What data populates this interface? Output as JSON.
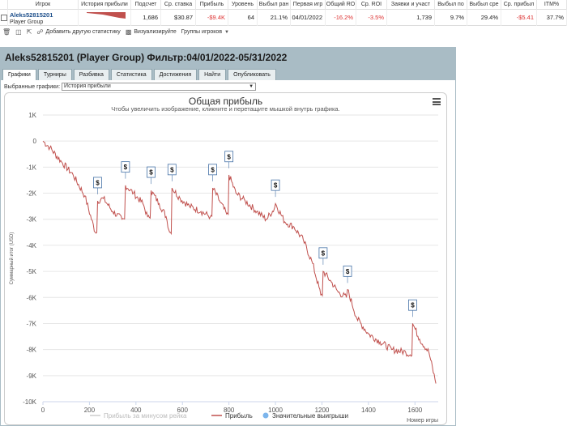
{
  "stats": {
    "headers": [
      "Игрок",
      "История прибыли",
      "Подсчет",
      "Ср. ставка",
      "Прибыль",
      "Уровень",
      "Выбыл ран",
      "Первая игр",
      "Общий RO",
      "Ср. ROI",
      "Заявки и участ",
      "Выбыл по",
      "Выбыл сре",
      "Ср. прибыл",
      "ITM%"
    ],
    "row": {
      "player_name": "Aleks52815201",
      "player_group": "Player Group",
      "count": "1,686",
      "avg_stake": "$30.87",
      "profit": "-$9.4K",
      "level": "64",
      "early_out": "21.1%",
      "first_game": "04/01/2022",
      "total_roi": "-16.2%",
      "avg_roi": "-3.5%",
      "entries": "1,739",
      "out_late": "9.7%",
      "out_mid": "29.4%",
      "avg_profit": "-$5.41",
      "itm": "37.7%"
    }
  },
  "toolbar": {
    "add_stat": "Добавить другую статистику",
    "visualize": "Визуализируйте",
    "groups": "Группы игроков"
  },
  "panel": {
    "title": "Aleks52815201 (Player Group) Фильтр:04/01/2022-05/31/2022",
    "tabs": [
      "Графики",
      "Турниры",
      "Разбивка",
      "Статистика",
      "Достижения",
      "Найти",
      "Опубликовать"
    ],
    "select_label": "Выбранные графики:",
    "select_value": "История прибыли"
  },
  "chart_data": {
    "type": "line",
    "title": "Общая прибыль",
    "subtitle": "Чтобы увеличить изображение, кликните и перетащите мышкой внутрь графика.",
    "xlabel": "Номер игры",
    "ylabel": "Суммарный итог (USD)",
    "xlim": [
      0,
      1700
    ],
    "ylim": [
      -10000,
      1000
    ],
    "x_ticks": [
      0,
      200,
      400,
      600,
      800,
      1000,
      1200,
      1400,
      1600
    ],
    "y_ticks": [
      1000,
      0,
      -1000,
      -2000,
      -3000,
      -4000,
      -5000,
      -6000,
      -7000,
      -8000,
      -9000,
      -10000
    ],
    "y_tick_labels": [
      "1K",
      "0",
      "-1K",
      "-2K",
      "-3K",
      "-4K",
      "-5K",
      "-6K",
      "-7K",
      "-8K",
      "-9K",
      "-10K"
    ],
    "series": [
      {
        "name": "Прибыль",
        "color": "#c0504d",
        "points": [
          [
            0,
            0
          ],
          [
            30,
            -250
          ],
          [
            80,
            -800
          ],
          [
            130,
            -1300
          ],
          [
            180,
            -2100
          ],
          [
            225,
            -3500
          ],
          [
            235,
            -2300
          ],
          [
            260,
            -2200
          ],
          [
            300,
            -2700
          ],
          [
            340,
            -3000
          ],
          [
            355,
            -1700
          ],
          [
            390,
            -2000
          ],
          [
            430,
            -2400
          ],
          [
            450,
            -2900
          ],
          [
            465,
            -1900
          ],
          [
            500,
            -2400
          ],
          [
            530,
            -2900
          ],
          [
            545,
            -3500
          ],
          [
            555,
            -1800
          ],
          [
            590,
            -2200
          ],
          [
            630,
            -2500
          ],
          [
            680,
            -2700
          ],
          [
            720,
            -2900
          ],
          [
            730,
            -1800
          ],
          [
            760,
            -2300
          ],
          [
            790,
            -2800
          ],
          [
            800,
            -1300
          ],
          [
            830,
            -2000
          ],
          [
            870,
            -2300
          ],
          [
            920,
            -2700
          ],
          [
            960,
            -3000
          ],
          [
            995,
            -2600
          ],
          [
            1000,
            -2400
          ],
          [
            1040,
            -3100
          ],
          [
            1080,
            -3300
          ],
          [
            1120,
            -3800
          ],
          [
            1160,
            -4700
          ],
          [
            1195,
            -5900
          ],
          [
            1205,
            -5000
          ],
          [
            1240,
            -5400
          ],
          [
            1270,
            -5800
          ],
          [
            1305,
            -6000
          ],
          [
            1310,
            -5700
          ],
          [
            1350,
            -6800
          ],
          [
            1400,
            -7400
          ],
          [
            1450,
            -7700
          ],
          [
            1500,
            -8000
          ],
          [
            1560,
            -8100
          ],
          [
            1580,
            -8200
          ],
          [
            1590,
            -7000
          ],
          [
            1620,
            -7600
          ],
          [
            1660,
            -8100
          ],
          [
            1690,
            -9300
          ]
        ]
      }
    ],
    "big_wins_x": [
      235,
      355,
      465,
      555,
      730,
      800,
      1000,
      1205,
      1310,
      1590
    ],
    "legend": [
      "Прибыль за минусом рейка",
      "Прибыль",
      "Значительные выигрыши"
    ],
    "legend_position": "bottom",
    "marker_label": "$"
  }
}
